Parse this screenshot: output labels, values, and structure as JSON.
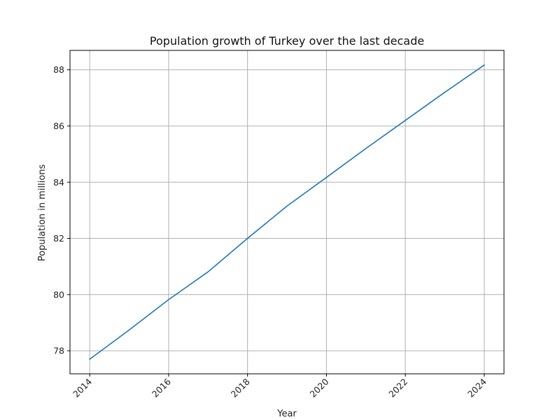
{
  "chart_data": {
    "type": "line",
    "title": "Population growth of Turkey over the last decade",
    "xlabel": "Year",
    "ylabel": "Population in millions",
    "x": [
      2014,
      2015,
      2016,
      2017,
      2018,
      2019,
      2020,
      2021,
      2022,
      2023,
      2024
    ],
    "series": [
      {
        "values": [
          77.7,
          78.74,
          79.82,
          80.81,
          82.0,
          83.15,
          84.17,
          85.2,
          86.2,
          87.2,
          88.17
        ],
        "color": "#1f77b4"
      }
    ],
    "xlim": [
      2013.5,
      2024.5
    ],
    "ylim": [
      77.18,
      88.69
    ],
    "xticks": [
      2014,
      2016,
      2018,
      2020,
      2022,
      2024
    ],
    "yticks": [
      78,
      80,
      82,
      84,
      86,
      88
    ],
    "xtick_rotation": 45,
    "grid": true,
    "grid_color": "#b0b0b0",
    "axis_color": "#000000"
  }
}
